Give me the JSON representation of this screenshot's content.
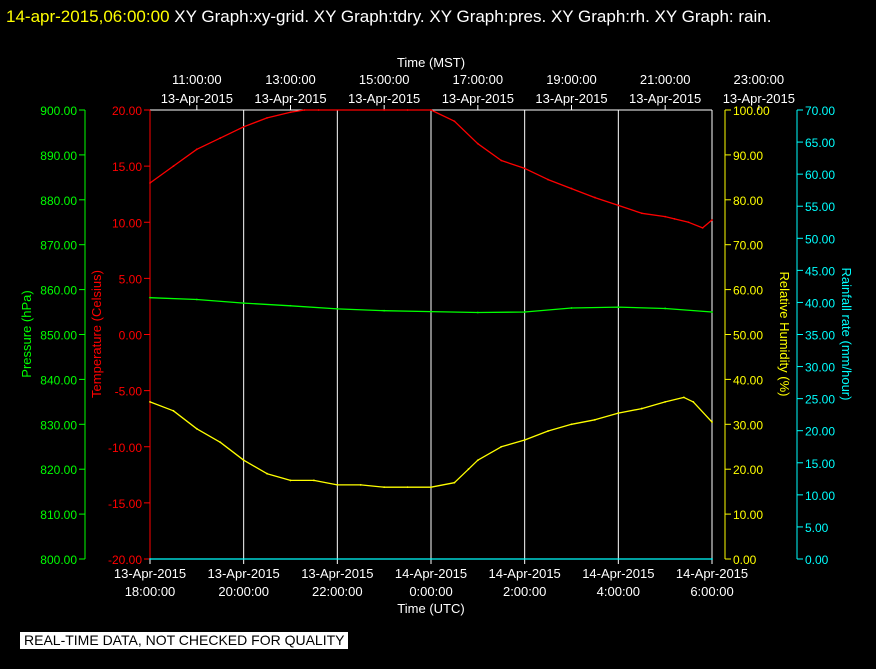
{
  "header": {
    "timestamp": "14-apr-2015,06:00:00",
    "title": "XY Graph:xy-grid.  XY Graph:tdry.  XY Graph:pres.  XY Graph:rh.  XY Graph: rain."
  },
  "footer": {
    "notice": "REAL-TIME DATA, NOT CHECKED FOR QUALITY"
  },
  "colors": {
    "background": "#000000",
    "grid": "#ffffff",
    "temperature": "#ff0000",
    "pressure": "#00ff00",
    "humidity": "#ffff00",
    "rainfall": "#00ffff",
    "text": "#ffffff"
  },
  "chart_data": {
    "type": "line",
    "grid": true,
    "x_range_utc_hours": [
      18,
      30
    ],
    "top_axis": {
      "label": "Time (MST)",
      "ticks": [
        {
          "time": "11:00:00",
          "date": "13-Apr-2015"
        },
        {
          "time": "13:00:00",
          "date": "13-Apr-2015"
        },
        {
          "time": "15:00:00",
          "date": "13-Apr-2015"
        },
        {
          "time": "17:00:00",
          "date": "13-Apr-2015"
        },
        {
          "time": "19:00:00",
          "date": "13-Apr-2015"
        },
        {
          "time": "21:00:00",
          "date": "13-Apr-2015"
        },
        {
          "time": "23:00:00",
          "date": "13-Apr-2015"
        }
      ]
    },
    "bottom_axis": {
      "label": "Time (UTC)",
      "ticks": [
        {
          "date": "13-Apr-2015",
          "time": "18:00:00"
        },
        {
          "date": "13-Apr-2015",
          "time": "20:00:00"
        },
        {
          "date": "13-Apr-2015",
          "time": "22:00:00"
        },
        {
          "date": "14-Apr-2015",
          "time": "0:00:00"
        },
        {
          "date": "14-Apr-2015",
          "time": "2:00:00"
        },
        {
          "date": "14-Apr-2015",
          "time": "4:00:00"
        },
        {
          "date": "14-Apr-2015",
          "time": "6:00:00"
        }
      ]
    },
    "y_axes": {
      "pressure": {
        "label": "Pressure (hPa)",
        "range": [
          800,
          900
        ],
        "ticks": [
          "800.00",
          "810.00",
          "820.00",
          "830.00",
          "840.00",
          "850.00",
          "860.00",
          "870.00",
          "880.00",
          "890.00",
          "900.00"
        ]
      },
      "temperature": {
        "label": "Temperature (Celsius)",
        "range": [
          -20,
          20
        ],
        "ticks": [
          "-20.00",
          "-15.00",
          "-10.00",
          "-5.00",
          "0.00",
          "5.00",
          "10.00",
          "15.00",
          "20.00"
        ]
      },
      "humidity": {
        "label": "Relative Humidity (%)",
        "range": [
          0,
          100
        ],
        "ticks": [
          "0.00",
          "10.00",
          "20.00",
          "30.00",
          "40.00",
          "50.00",
          "60.00",
          "70.00",
          "80.00",
          "90.00",
          "100.00"
        ]
      },
      "rainfall": {
        "label": "Rainfall rate (mm/hour)",
        "range": [
          0,
          70
        ],
        "ticks": [
          "0.00",
          "5.00",
          "10.00",
          "15.00",
          "20.00",
          "25.00",
          "30.00",
          "35.00",
          "40.00",
          "45.00",
          "50.00",
          "55.00",
          "60.00",
          "65.00",
          "70.00"
        ]
      }
    },
    "series": [
      {
        "key": "temperature",
        "x": [
          18.0,
          18.5,
          19.0,
          19.5,
          20.0,
          20.5,
          21.0,
          21.3,
          21.6,
          23.0,
          23.5,
          24.0,
          24.5,
          25.0,
          25.5,
          26.0,
          26.5,
          27.0,
          27.5,
          28.0,
          28.5,
          29.0,
          29.2,
          29.5,
          29.8,
          30.0
        ],
        "y": [
          13.5,
          15.0,
          16.5,
          17.5,
          18.5,
          19.3,
          19.8,
          20.0,
          20.0,
          20.0,
          20.0,
          20.0,
          19.0,
          17.0,
          15.5,
          14.8,
          13.8,
          13.0,
          12.2,
          11.5,
          10.8,
          10.5,
          10.3,
          10.0,
          9.5,
          10.2
        ]
      },
      {
        "key": "pressure",
        "x": [
          18.0,
          19.0,
          20.0,
          21.0,
          22.0,
          23.0,
          24.0,
          25.0,
          26.0,
          27.0,
          28.0,
          29.0,
          30.0
        ],
        "y": [
          858.2,
          857.8,
          857.0,
          856.4,
          855.7,
          855.3,
          855.1,
          854.9,
          855.0,
          855.9,
          856.1,
          855.8,
          855.0
        ]
      },
      {
        "key": "humidity",
        "x": [
          18.0,
          18.5,
          19.0,
          19.5,
          20.0,
          20.5,
          21.0,
          21.5,
          22.0,
          22.5,
          23.0,
          23.5,
          24.0,
          24.5,
          24.8,
          25.0,
          25.5,
          26.0,
          26.5,
          27.0,
          27.5,
          28.0,
          28.5,
          29.0,
          29.4,
          29.6,
          30.0
        ],
        "y": [
          35.0,
          33.0,
          29.0,
          26.0,
          22.0,
          19.0,
          17.5,
          17.5,
          16.5,
          16.5,
          16.0,
          16.0,
          16.0,
          17.0,
          20.0,
          22.0,
          25.0,
          26.5,
          28.5,
          30.0,
          31.0,
          32.5,
          33.5,
          35.0,
          36.0,
          35.0,
          30.5
        ]
      },
      {
        "key": "rainfall",
        "x": [
          18.0,
          30.0
        ],
        "y": [
          0,
          0
        ]
      }
    ]
  }
}
